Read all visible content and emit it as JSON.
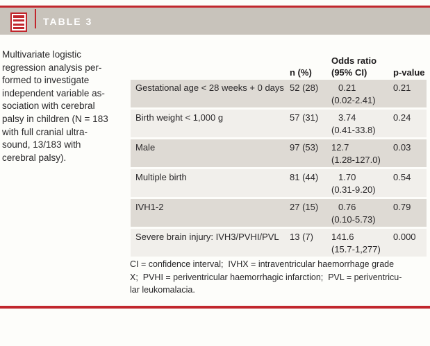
{
  "colors": {
    "accent_red": "#c1272d",
    "bar_gray": "#c8c3bb",
    "row_dark": "#dedad4",
    "row_light": "#f1efeb"
  },
  "header": {
    "title": "TABLE 3",
    "icon": "table-document-icon"
  },
  "caption": {
    "text": "Multivariate logistic\nregression analysis per-\nformed to investigate\nindependent variable as-\nsociation with cerebral\npalsy in children (N = 183\nwith full cranial ultra-\nsound, 13/183 with\ncerebral palsy)."
  },
  "table": {
    "headers": {
      "variable": "",
      "n": "n (%)",
      "odds_ratio": "Odds ratio\n(95% CI)",
      "p_value": "p-value"
    },
    "rows": [
      {
        "variable": "Gestational age < 28 weeks + 0 days",
        "n": "52 (28)",
        "or": "0.21",
        "or_ci": "(0.02-2.41)",
        "p": "0.21"
      },
      {
        "variable": "Birth weight < 1,000 g",
        "n": "57 (31)",
        "or": "3.74",
        "or_ci": "(0.41-33.8)",
        "p": "0.24"
      },
      {
        "variable": "Male",
        "n": "97 (53)",
        "or": "12.7",
        "or_ci": "(1.28-127.0)",
        "p": "0.03"
      },
      {
        "variable": "Multiple birth",
        "n": "81 (44)",
        "or": "1.70",
        "or_ci": "(0.31-9.20)",
        "p": "0.54"
      },
      {
        "variable": "IVH1-2",
        "n": "27 (15)",
        "or": "0.76",
        "or_ci": "(0.10-5.73)",
        "p": "0.79"
      },
      {
        "variable": "Severe brain injury: IVH3/PVHI/PVL",
        "n": "13 (7)",
        "or": "141.6",
        "or_ci": "(15.7-1,277)",
        "p": "0.000"
      }
    ]
  },
  "footnote": {
    "text": "CI = confidence interval;  IVHX = intraventricular haemorrhage grade\nX;  PVHI = periventricular haemorrhagic infarction;  PVL = periventricu-\nlar leukomalacia."
  }
}
